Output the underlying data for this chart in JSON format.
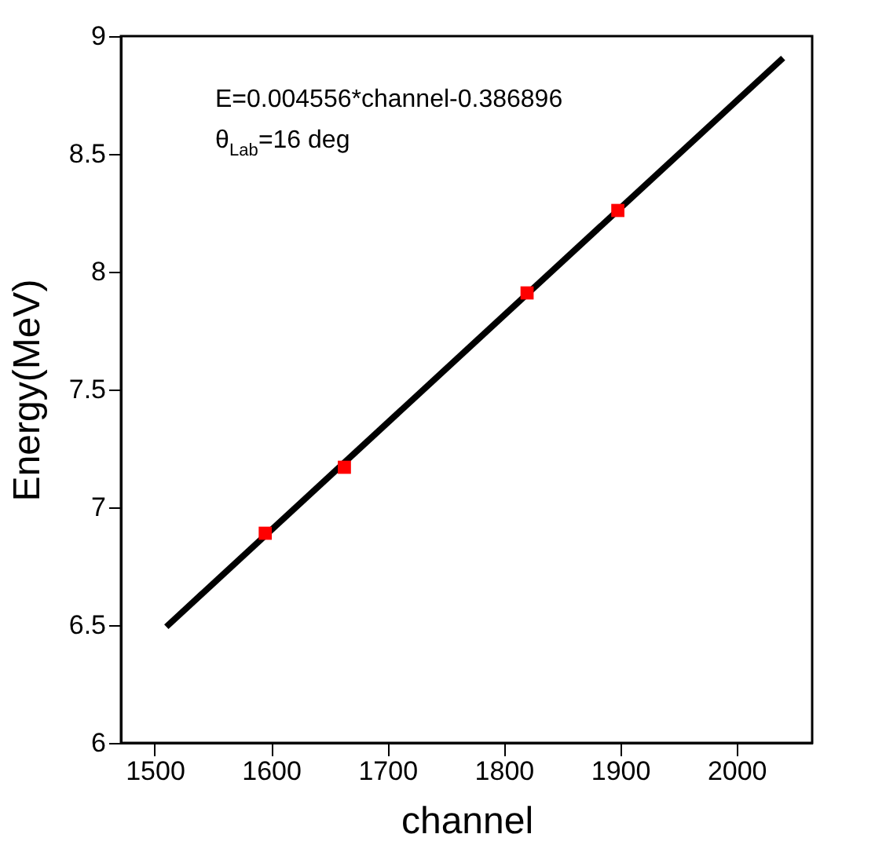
{
  "chart_data": {
    "type": "scatter",
    "xlabel": "channel",
    "ylabel": "Energy(MeV)",
    "xlim": [
      1471,
      2065
    ],
    "xticks": [
      1500,
      1600,
      1700,
      1800,
      1900,
      2000
    ],
    "ylim": [
      6,
      9
    ],
    "yticks": [
      6,
      6.5,
      7,
      7.5,
      8,
      8.5,
      9
    ],
    "grid": false,
    "series": [
      {
        "type": "line",
        "color": "#000000",
        "x": [
          1510,
          2040
        ],
        "values": [
          6.493,
          8.907
        ],
        "line_style": "solid"
      },
      {
        "color": "#ff0000",
        "marker": "square",
        "x": [
          1595,
          1663,
          1820,
          1898
        ],
        "values": [
          6.89,
          7.17,
          7.91,
          8.26
        ]
      }
    ],
    "annotations": [
      "E=0.004556*channel-0.386896",
      "θ$_{Lab}$=16 deg"
    ]
  }
}
